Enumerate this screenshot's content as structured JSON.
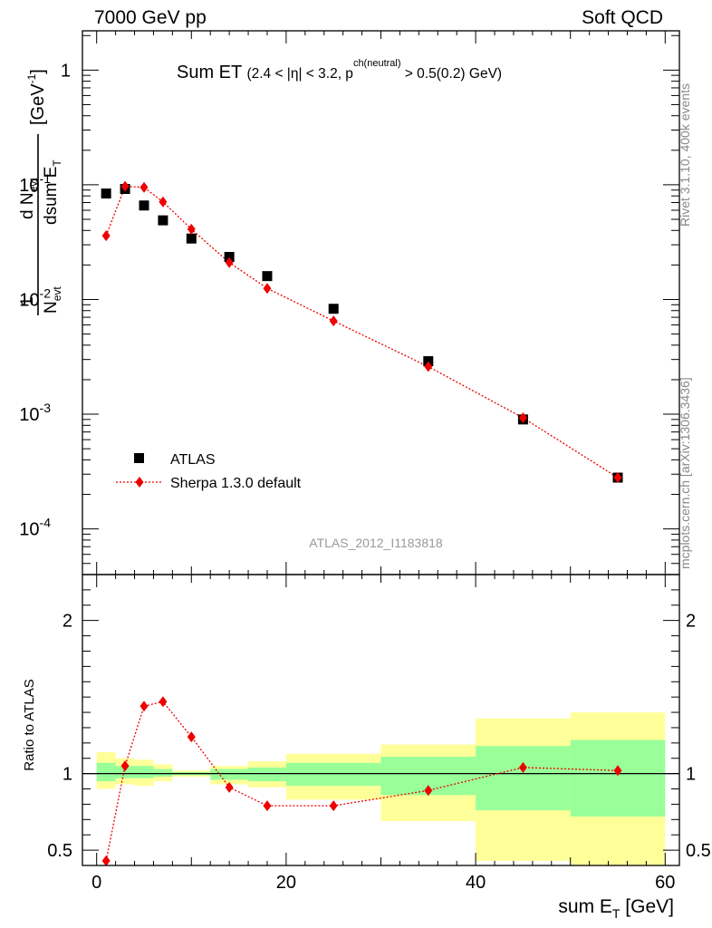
{
  "header": {
    "left": "7000 GeV pp",
    "right": "Soft QCD"
  },
  "side_labels": {
    "rivet": "Rivet 3.1.10,  400k events",
    "mcplots": "mcplots.cern.ch [arXiv:1306.3436]"
  },
  "watermark": "ATLAS_2012_I1183818",
  "colors": {
    "data": "#000000",
    "mc": "#ee0000",
    "band_inner": "#99ff99",
    "band_outer": "#ffff99"
  },
  "chart_data": [
    {
      "type": "scatter",
      "title": "Sum ET (2.4 < |η| < 3.2, p_T^{ch(neutral)} > 0.5(0.2) GeV)",
      "ylabel": "1/N_evt dN_evt/dsum E_T [GeV^-1]",
      "yscale": "log",
      "ylim": [
        4e-05,
        2.2
      ],
      "xlim": [
        -1.5,
        61.5
      ],
      "y_tick_labels": [
        "1",
        "10^-1",
        "10^-2",
        "10^-3",
        "10^-4"
      ],
      "legend_position": "bottom-left",
      "series": [
        {
          "name": "ATLAS",
          "marker": "square",
          "x": [
            1,
            3,
            5,
            7,
            10,
            14,
            18,
            25,
            35,
            45,
            55
          ],
          "y": [
            0.084,
            0.092,
            0.066,
            0.049,
            0.034,
            0.0235,
            0.016,
            0.0083,
            0.0029,
            0.0009,
            0.00028
          ]
        },
        {
          "name": "Sherpa 1.3.0 default",
          "marker": "diamond",
          "line": "dotted",
          "x": [
            1,
            3,
            5,
            7,
            10,
            14,
            18,
            25,
            35,
            45,
            55
          ],
          "y": [
            0.036,
            0.097,
            0.095,
            0.071,
            0.041,
            0.021,
            0.0125,
            0.0065,
            0.0026,
            0.00093,
            0.00028
          ]
        }
      ]
    },
    {
      "type": "line",
      "ylabel": "Ratio to ATLAS",
      "xlabel": "sum E_T [GeV]",
      "ylim": [
        0.4,
        2.3
      ],
      "xlim": [
        -1.5,
        61.5
      ],
      "x_tick_labels": [
        "0",
        "20",
        "40",
        "60"
      ],
      "y_tick_labels": [
        "0.5",
        "1",
        "2"
      ],
      "reference_line": 1,
      "bands": [
        {
          "x0": 0,
          "x1": 2,
          "inner": [
            0.95,
            1.07
          ],
          "outer": [
            0.9,
            1.14
          ]
        },
        {
          "x0": 2,
          "x1": 4,
          "inner": [
            0.97,
            1.05
          ],
          "outer": [
            0.93,
            1.1
          ]
        },
        {
          "x0": 4,
          "x1": 6,
          "inner": [
            0.97,
            1.05
          ],
          "outer": [
            0.92,
            1.09
          ]
        },
        {
          "x0": 6,
          "x1": 8,
          "inner": [
            0.98,
            1.03
          ],
          "outer": [
            0.95,
            1.06
          ]
        },
        {
          "x0": 8,
          "x1": 12,
          "inner": [
            0.99,
            1.01
          ],
          "outer": [
            0.98,
            1.02
          ]
        },
        {
          "x0": 12,
          "x1": 16,
          "inner": [
            0.96,
            1.03
          ],
          "outer": [
            0.93,
            1.05
          ]
        },
        {
          "x0": 16,
          "x1": 20,
          "inner": [
            0.95,
            1.04
          ],
          "outer": [
            0.91,
            1.08
          ]
        },
        {
          "x0": 20,
          "x1": 30,
          "inner": [
            0.92,
            1.07
          ],
          "outer": [
            0.83,
            1.13
          ]
        },
        {
          "x0": 30,
          "x1": 40,
          "inner": [
            0.86,
            1.11
          ],
          "outer": [
            0.69,
            1.19
          ]
        },
        {
          "x0": 40,
          "x1": 50,
          "inner": [
            0.76,
            1.18
          ],
          "outer": [
            0.43,
            1.36
          ]
        },
        {
          "x0": 50,
          "x1": 60,
          "inner": [
            0.72,
            1.22
          ],
          "outer": [
            0.3,
            1.4
          ]
        }
      ],
      "series": [
        {
          "name": "Sherpa 1.3.0 default",
          "marker": "diamond",
          "x": [
            1,
            3,
            5,
            7,
            10,
            14,
            18,
            25,
            35,
            45,
            55
          ],
          "y": [
            0.43,
            1.05,
            1.44,
            1.47,
            1.24,
            0.91,
            0.79,
            0.79,
            0.89,
            1.04,
            1.02
          ]
        }
      ]
    }
  ]
}
